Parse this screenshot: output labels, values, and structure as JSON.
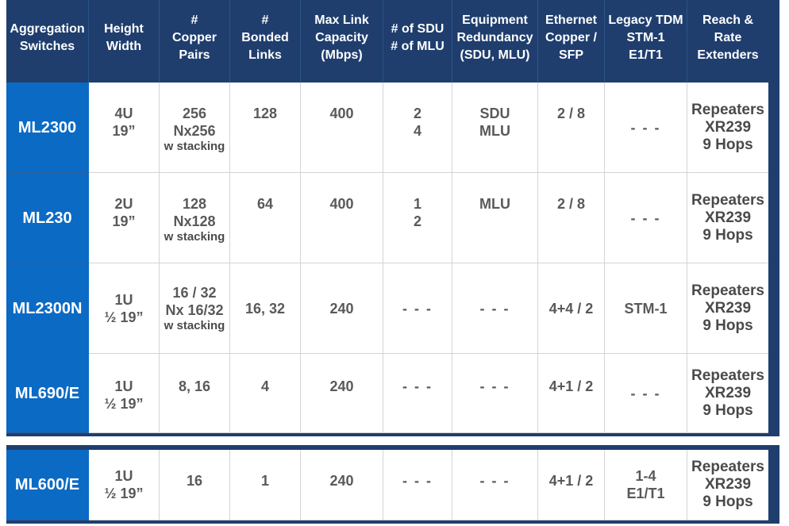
{
  "headers": [
    [
      "Aggregation",
      "Switches"
    ],
    [
      "Height",
      "Width"
    ],
    [
      "#",
      "Copper",
      "Pairs"
    ],
    [
      "#",
      "Bonded",
      "Links"
    ],
    [
      "Max Link",
      "Capacity",
      "(Mbps)"
    ],
    [
      "# of SDU",
      "# of MLU"
    ],
    [
      "Equipment",
      "Redundancy",
      "(SDU, MLU)"
    ],
    [
      "Ethernet",
      "Copper /",
      "SFP"
    ],
    [
      "Legacy TDM",
      "STM-1",
      "E1/T1"
    ],
    [
      "Reach & Rate",
      "Extenders"
    ]
  ],
  "rows": [
    {
      "name": "ML2300",
      "height_width": [
        "4U",
        "19”"
      ],
      "copper_pairs": [
        "256",
        "Nx256"
      ],
      "copper_note": "w stacking",
      "bonded_links": "128",
      "max_capacity": "400",
      "sdu_mlu": [
        "2",
        "4"
      ],
      "redundancy": [
        "SDU",
        "MLU"
      ],
      "ethernet": "2 / 8",
      "legacy_tdm": [
        "- - -"
      ],
      "reach": [
        "Repeaters",
        "XR239",
        "9 Hops"
      ]
    },
    {
      "name": "ML230",
      "height_width": [
        "2U",
        "19”"
      ],
      "copper_pairs": [
        "128",
        "Nx128"
      ],
      "copper_note": "w stacking",
      "bonded_links": "64",
      "max_capacity": "400",
      "sdu_mlu": [
        "1",
        "2"
      ],
      "redundancy": [
        "MLU"
      ],
      "ethernet": "2 / 8",
      "legacy_tdm": [
        "- - -"
      ],
      "reach": [
        "Repeaters",
        "XR239",
        "9 Hops"
      ]
    },
    {
      "name": "ML2300N",
      "height_width": [
        "1U",
        "½ 19”"
      ],
      "copper_pairs": [
        "16 / 32",
        "Nx 16/32"
      ],
      "copper_note": "w stacking",
      "bonded_links": "16, 32",
      "max_capacity": "240",
      "sdu_mlu": [
        "- - -"
      ],
      "redundancy": [
        "- - -"
      ],
      "ethernet": "4+4 / 2",
      "legacy_tdm": [
        "STM-1"
      ],
      "reach": [
        "Repeaters",
        "XR239",
        "9 Hops"
      ]
    },
    {
      "name": "ML690/E",
      "height_width": [
        "1U",
        "½ 19”"
      ],
      "copper_pairs": [
        "8, 16"
      ],
      "copper_note": "",
      "bonded_links": "4",
      "max_capacity": "240",
      "sdu_mlu": [
        "- - -"
      ],
      "redundancy": [
        "- - -"
      ],
      "ethernet": "4+1 / 2",
      "legacy_tdm": [
        "- - -"
      ],
      "reach": [
        "Repeaters",
        "XR239",
        "9 Hops"
      ]
    }
  ],
  "extra_row": {
    "name": "ML600/E",
    "height_width": [
      "1U",
      "½ 19”"
    ],
    "copper_pairs": [
      "16"
    ],
    "copper_note": "",
    "bonded_links": "1",
    "max_capacity": "240",
    "sdu_mlu": [
      "- - -"
    ],
    "redundancy": [
      "- - -"
    ],
    "ethernet": "4+1 / 2",
    "legacy_tdm": [
      "1-4",
      "E1/T1"
    ],
    "reach": [
      "Repeaters",
      "XR239",
      "9 Hops"
    ]
  }
}
